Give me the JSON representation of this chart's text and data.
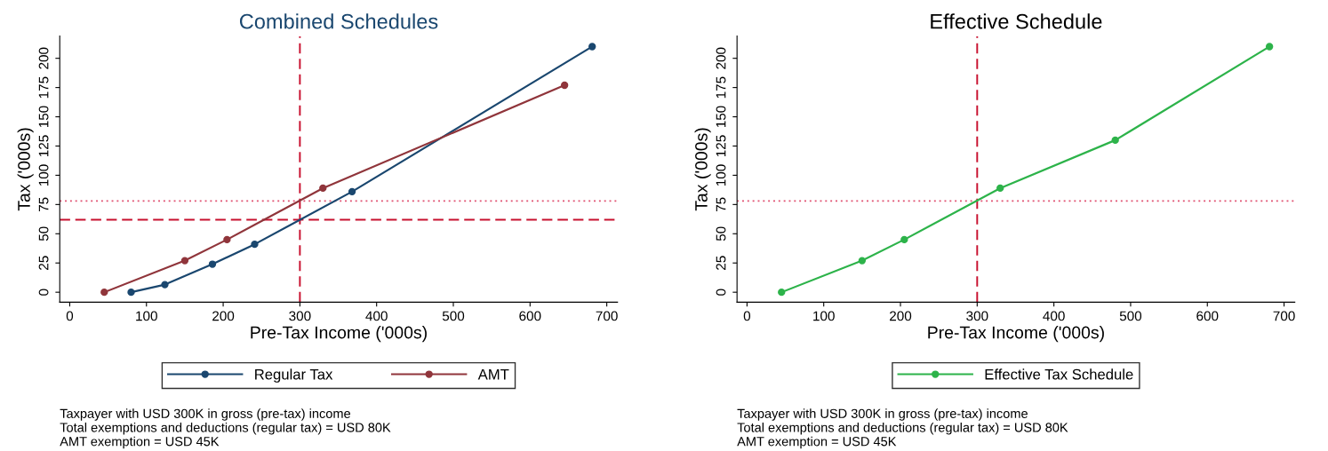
{
  "chart_data": [
    {
      "type": "line",
      "title": "Combined Schedules",
      "xlabel": "Pre-Tax Income ('000s)",
      "ylabel": "Tax ('000s)",
      "series": [
        {
          "name": "Regular Tax",
          "color": "#1a476f",
          "x": [
            80,
            124,
            186,
            241,
            368,
            681
          ],
          "values": [
            0,
            6.5,
            24,
            41,
            86,
            210
          ]
        },
        {
          "name": "AMT",
          "color": "#90353b",
          "x": [
            45,
            150,
            205,
            330,
            645
          ],
          "values": [
            0,
            27,
            45,
            89,
            177
          ]
        }
      ],
      "xlim": [
        -13,
        714
      ],
      "xticks": [
        0,
        100,
        200,
        300,
        400,
        500,
        600,
        700
      ],
      "ylim": [
        -8.5,
        219
      ],
      "yticks": [
        0,
        25,
        50,
        75,
        100,
        125,
        150,
        175,
        200
      ],
      "ref_lines": [
        {
          "axis": "x",
          "value": 300,
          "color": "#c8102e",
          "line_style": "dashed"
        },
        {
          "axis": "y",
          "value": 78,
          "color": "#e05070",
          "line_style": "dotted"
        },
        {
          "axis": "y",
          "value": 62,
          "color": "#c8102e",
          "line_style": "dashed"
        }
      ],
      "marker": "circle",
      "line_style": "solid",
      "grid": false,
      "legend": "bottom",
      "annotations": [
        "Taxpayer with USD 300K in gross (pre-tax) income\nTotal exemptions and deductions (regular tax) = USD 80K\nAMT exemption = USD 45K"
      ]
    },
    {
      "type": "line",
      "title": "Effective Schedule",
      "xlabel": "Pre-Tax Income ('000s)",
      "ylabel": "Tax ('000s)",
      "series": [
        {
          "name": "Effective Tax Schedule",
          "color": "#2db34a",
          "x": [
            45,
            150,
            205,
            330,
            480,
            681
          ],
          "values": [
            0,
            27,
            45,
            89,
            130,
            210
          ]
        }
      ],
      "xlim": [
        -13,
        714
      ],
      "xticks": [
        0,
        100,
        200,
        300,
        400,
        500,
        600,
        700
      ],
      "ylim": [
        -8.5,
        219
      ],
      "yticks": [
        0,
        25,
        50,
        75,
        100,
        125,
        150,
        175,
        200
      ],
      "ref_lines": [
        {
          "axis": "x",
          "value": 300,
          "color": "#c8102e",
          "line_style": "dashed"
        },
        {
          "axis": "y",
          "value": 78,
          "color": "#e05070",
          "line_style": "dotted"
        }
      ],
      "marker": "circle",
      "line_style": "solid",
      "grid": false,
      "legend": "bottom",
      "annotations": [
        "Taxpayer with USD 300K in gross (pre-tax) income\nTotal exemptions and deductions (regular tax) = USD 80K\nAMT exemption = USD 45K"
      ]
    }
  ]
}
